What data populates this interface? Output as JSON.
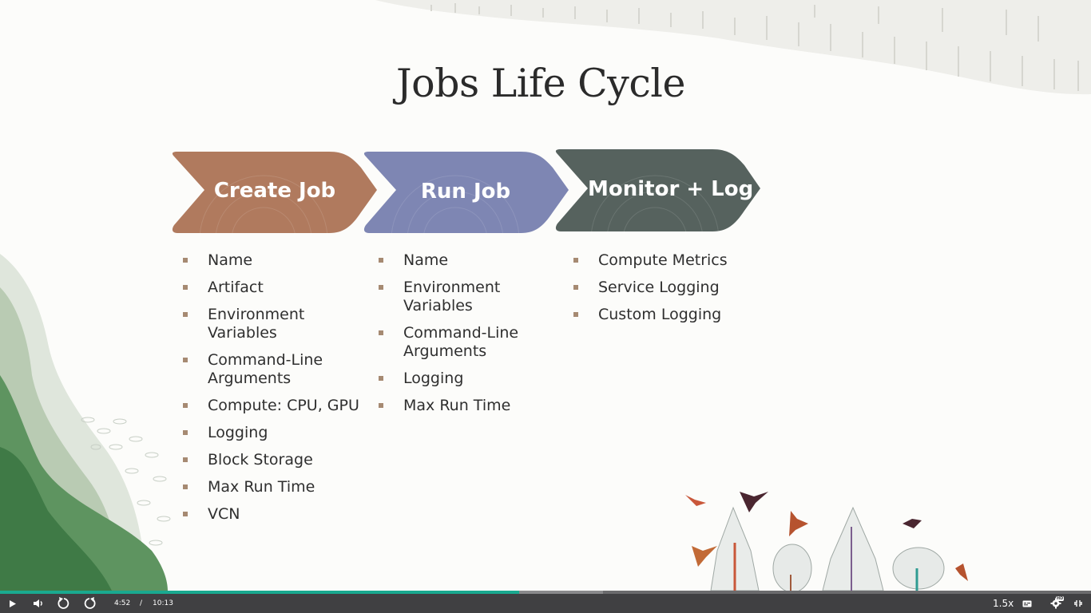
{
  "slide": {
    "title": "Jobs Life Cycle",
    "steps": [
      {
        "label": "Create Job",
        "color": "#b07a5e",
        "items": [
          "Name",
          "Artifact",
          "Environment Variables",
          "Command-Line Arguments",
          "Compute: CPU, GPU",
          "Logging",
          "Block Storage",
          "Max Run Time",
          "VCN"
        ]
      },
      {
        "label": "Run Job",
        "color": "#7e86b3",
        "items": [
          "Name",
          "Environment Variables",
          "Command-Line Arguments",
          "Logging",
          "Max Run Time"
        ]
      },
      {
        "label": "Monitor + Log",
        "color": "#56625e",
        "items": [
          "Compute Metrics",
          "Service Logging",
          "Custom Logging"
        ]
      }
    ]
  },
  "player": {
    "current_time": "4:52",
    "separator": "/",
    "duration": "10:13",
    "speed": "1.5x",
    "quality_badge": "HD",
    "played_fraction": 0.476,
    "buffered_fraction": 0.553,
    "colors": {
      "bar": "#404042",
      "played": "#1aa98f"
    },
    "icons": [
      "play-icon",
      "volume-icon",
      "rewind-icon",
      "forward-icon",
      "captions-icon",
      "settings-icon",
      "exit-fullscreen-icon"
    ]
  }
}
